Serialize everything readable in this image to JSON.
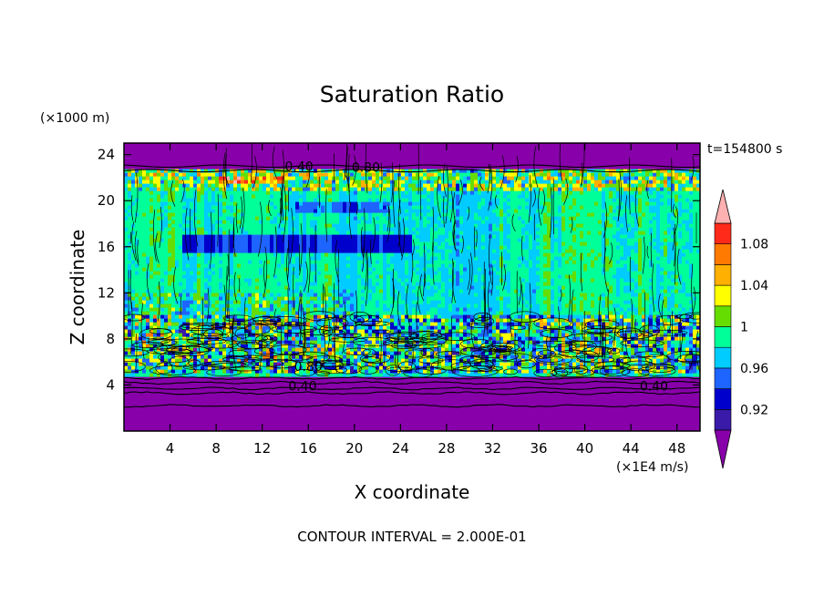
{
  "chart_data": {
    "type": "heatmap",
    "title": "Saturation Ratio",
    "xlabel": "X coordinate",
    "ylabel": "Z coordinate",
    "x_unit": "(×1E4 m/s)",
    "y_unit": "(×1000 m)",
    "time_label": "t=154800 s",
    "footer": "CONTOUR INTERVAL = 2.000E-01",
    "xlim": [
      0,
      50
    ],
    "ylim": [
      0,
      25
    ],
    "x_ticks": [
      "4",
      "8",
      "12",
      "16",
      "20",
      "24",
      "28",
      "32",
      "36",
      "40",
      "44",
      "48"
    ],
    "x_tick_values": [
      4,
      8,
      12,
      16,
      20,
      24,
      28,
      32,
      36,
      40,
      44,
      48
    ],
    "y_ticks": [
      "4",
      "8",
      "12",
      "16",
      "20",
      "24"
    ],
    "y_tick_values": [
      4,
      8,
      12,
      16,
      20,
      24
    ],
    "colorbar": {
      "labels": [
        "1.08",
        "1.04",
        "1",
        "0.96",
        "0.92"
      ],
      "label_values": [
        1.08,
        1.04,
        1.0,
        0.96,
        0.92
      ],
      "levels": [
        0.9,
        0.92,
        0.94,
        0.96,
        0.98,
        1.0,
        1.02,
        1.04,
        1.06,
        1.08,
        1.1
      ],
      "colors": [
        "#3a1aa8",
        "#0000cc",
        "#1e64ff",
        "#00ccff",
        "#00ff99",
        "#66dd00",
        "#ffff00",
        "#ffb000",
        "#ff7a00",
        "#ff2a1a"
      ],
      "under_color": "#8800aa",
      "over_color": "#ffb0b0",
      "extend": "both"
    },
    "contour_labels": [
      {
        "text": "0.40",
        "x": 15.2,
        "z": 23.0
      },
      {
        "text": "0.80",
        "x": 21.0,
        "z": 22.9
      },
      {
        "text": "0.80",
        "x": 16.0,
        "z": 5.6
      },
      {
        "text": "0.40",
        "x": 15.5,
        "z": 3.9
      },
      {
        "text": "0.40",
        "x": 46.0,
        "z": 3.9
      }
    ],
    "features": {
      "upper_dry_layer_z": [
        22.3,
        25
      ],
      "lower_dry_layer_z": [
        0,
        5.0
      ],
      "moist_region_z": [
        5.0,
        22.3
      ]
    }
  }
}
